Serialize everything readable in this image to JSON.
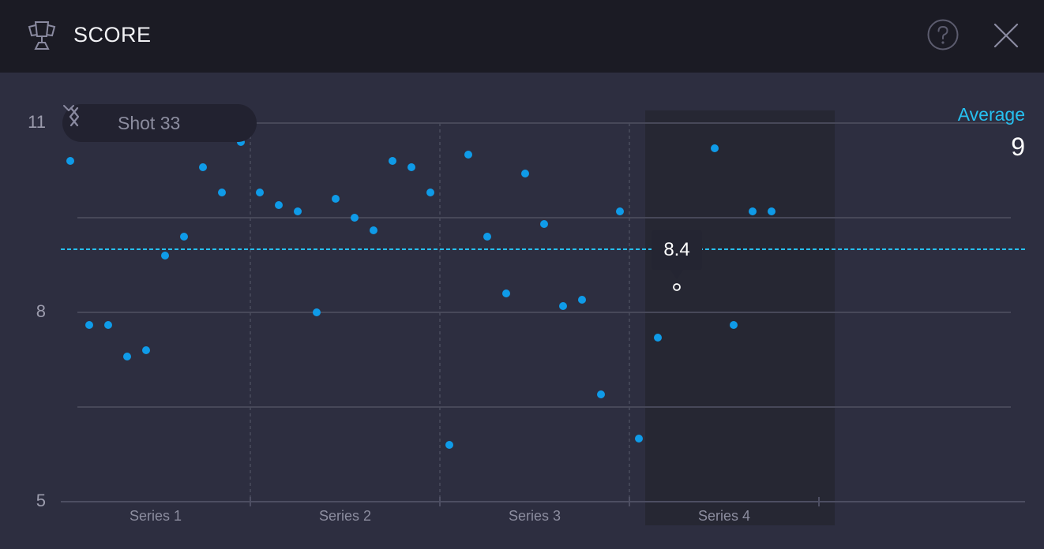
{
  "header": {
    "title": "SCORE",
    "icons": {
      "trophy": "trophy-icon",
      "help": "help-circle-icon",
      "close": "close-icon"
    }
  },
  "navigator": {
    "label": "Shot 33",
    "prev_icon": "chevron-left-icon",
    "next_icon": "chevron-right-icon",
    "dropdown_icon": "chevron-down-icon"
  },
  "average": {
    "label": "Average",
    "value": "9"
  },
  "tooltip": {
    "value": "8.4"
  },
  "colors": {
    "header_bg": "#1b1b24",
    "body_bg": "#2d2e40",
    "point": "#0f9be8",
    "average_line": "#26c0f0",
    "grid": "#474859",
    "highlight_band": "#262733"
  },
  "y_ticks": [
    {
      "label": "11",
      "value": 11
    },
    {
      "label": "8",
      "value": 8
    },
    {
      "label": "5",
      "value": 5
    }
  ],
  "chart_data": {
    "type": "scatter",
    "title": "SCORE",
    "xlabel": "",
    "ylabel": "",
    "ylim": [
      5,
      11
    ],
    "yticks": [
      5,
      8,
      11
    ],
    "grid_lines": [
      6.5,
      8,
      9.5,
      11
    ],
    "categories": [
      "Series 1",
      "Series 2",
      "Series 3",
      "Series 4"
    ],
    "average": 9,
    "selected_shot": 33,
    "selected_value": 8.4,
    "highlighted_category": "Series 4",
    "series": [
      {
        "name": "Series 1",
        "shots": [
          1,
          2,
          3,
          4,
          5,
          6,
          7,
          8,
          9,
          10
        ],
        "values": [
          10.4,
          7.8,
          7.8,
          7.3,
          7.4,
          8.9,
          9.2,
          10.3,
          9.9,
          10.7
        ]
      },
      {
        "name": "Series 2",
        "shots": [
          11,
          12,
          13,
          14,
          15,
          16,
          17,
          18,
          19,
          20
        ],
        "values": [
          9.9,
          9.7,
          9.6,
          8.0,
          9.8,
          9.5,
          9.3,
          10.4,
          10.3,
          9.9
        ]
      },
      {
        "name": "Series 3",
        "shots": [
          21,
          22,
          23,
          24,
          25,
          26,
          27,
          28,
          29,
          30
        ],
        "values": [
          5.9,
          10.5,
          9.2,
          8.3,
          10.2,
          9.4,
          8.1,
          8.2,
          6.7,
          9.6
        ]
      },
      {
        "name": "Series 4",
        "shots": [
          31,
          32,
          33,
          34,
          35,
          36,
          37,
          38
        ],
        "values": [
          6.0,
          7.6,
          8.4,
          9.0,
          10.6,
          7.8,
          9.6,
          9.6
        ]
      }
    ],
    "legend": "none"
  }
}
